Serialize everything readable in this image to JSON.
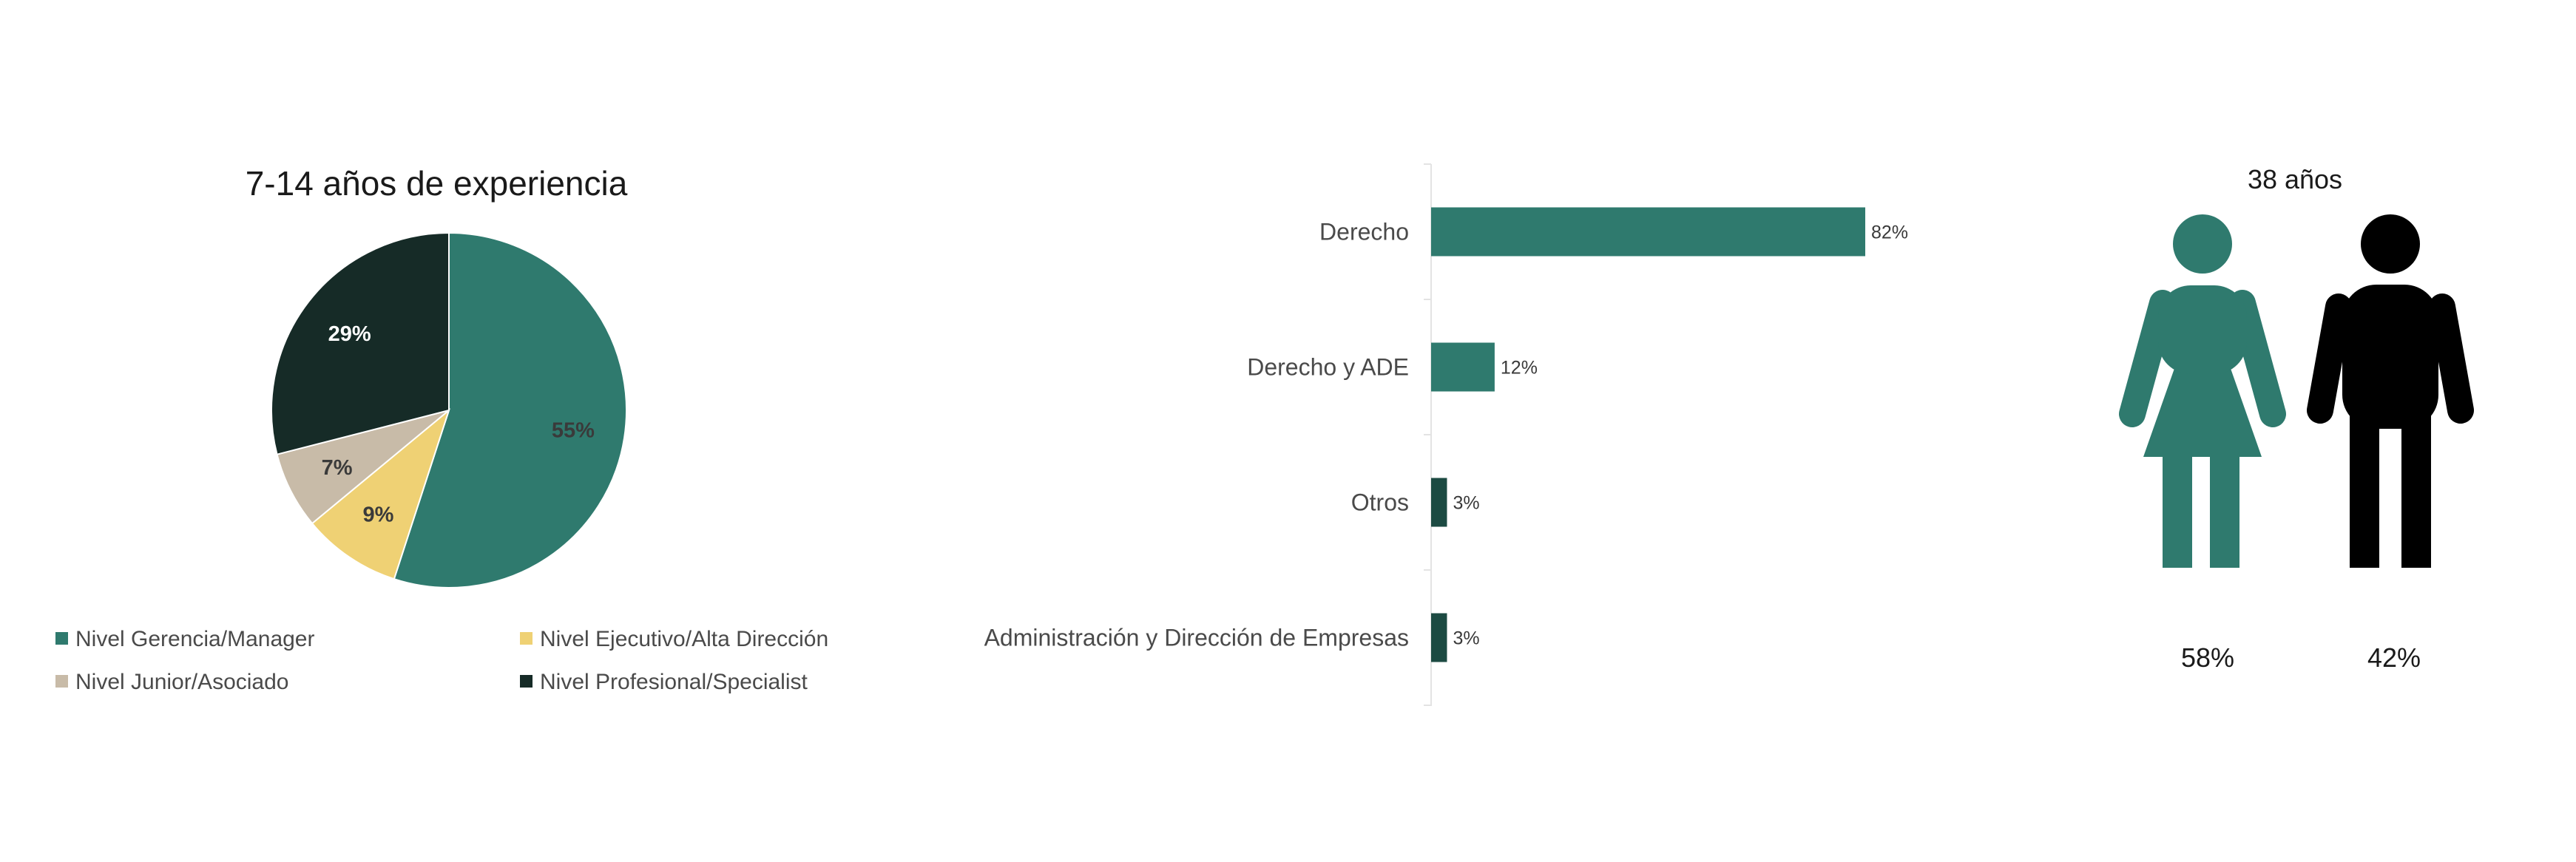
{
  "chart_data": [
    {
      "type": "pie",
      "title": "7-14 años de experiencia",
      "slices": [
        {
          "label": "Nivel Gerencia/Manager",
          "value": 55,
          "display": "55%",
          "color": "#2F7A6E",
          "label_color": "#3A3A3A"
        },
        {
          "label": "Nivel Ejecutivo/Alta Dirección",
          "value": 9,
          "display": "9%",
          "color": "#EFD174",
          "label_color": "#3A3A3A"
        },
        {
          "label": "Nivel Junior/Asociado",
          "value": 7,
          "display": "7%",
          "color": "#C8BBA8",
          "label_color": "#3A3A3A"
        },
        {
          "label": "Nivel Profesional/Specialist",
          "value": 29,
          "display": "29%",
          "color": "#162B27",
          "label_color": "#FFFFFF"
        }
      ],
      "legend": {
        "placement": "bottom",
        "order": [
          "Nivel Gerencia/Manager",
          "Nivel Ejecutivo/Alta Dirección",
          "Nivel Junior/Asociado",
          "Nivel Profesional/Specialist"
        ]
      }
    },
    {
      "type": "bar",
      "orientation": "horizontal",
      "categories": [
        "Derecho",
        "Derecho y ADE",
        "Otros",
        "Administración y Dirección de Empresas"
      ],
      "values": [
        82,
        12,
        3,
        3
      ],
      "value_labels": [
        "82%",
        "12%",
        "3%",
        "3%"
      ],
      "colors": [
        "#2F7A6E",
        "#2F7A6E",
        "#1C4A42",
        "#1C4A42"
      ],
      "xlim": [
        0,
        100
      ]
    },
    {
      "type": "pictogram",
      "title": "38 años",
      "items": [
        {
          "label": "Mujer",
          "icon": "female-figure-icon",
          "value": 58,
          "display": "58%",
          "color": "#2F7A6E"
        },
        {
          "label": "Hombre",
          "icon": "male-figure-icon",
          "value": 42,
          "display": "42%",
          "color": "#000000"
        }
      ]
    }
  ]
}
